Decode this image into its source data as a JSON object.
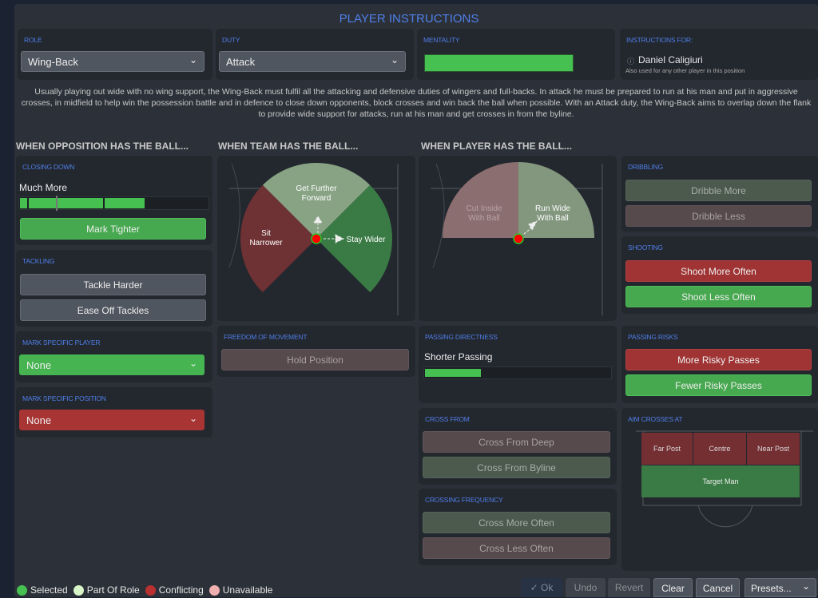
{
  "title": "PLAYER INSTRUCTIONS",
  "role": {
    "label": "ROLE",
    "value": "Wing-Back"
  },
  "duty": {
    "label": "DUTY",
    "value": "Attack"
  },
  "mentality": {
    "label": "MENTALITY",
    "level": 0.72,
    "color": "#46c050"
  },
  "instructions_for": {
    "label": "INSTRUCTIONS FOR:",
    "player": "Daniel Caligiuri",
    "note": "Also used for any other player in this position"
  },
  "description": "Usually playing out wide with no wing support, the Wing-Back must fulfil all the attacking and defensive duties of wingers and full-backs. In attack he must be prepared to run at his man and put in aggressive crosses, in midfield to help win the possession battle and in defence to close down opponents, block crosses and win back the ball when possible. With an Attack duty, the Wing-Back aims to overlap down the flank to provide wide support for attacks, run at his man and get crosses in from the byline.",
  "sections": {
    "opposition": "WHEN OPPOSITION HAS THE BALL...",
    "team": "WHEN TEAM HAS THE BALL...",
    "player": "WHEN PLAYER HAS THE BALL..."
  },
  "closing_down": {
    "label": "CLOSING DOWN",
    "value": "Much More",
    "level": 0.66,
    "button": "Mark Tighter"
  },
  "tackling": {
    "label": "TACKLING",
    "buttons": [
      "Tackle Harder",
      "Ease Off Tackles"
    ]
  },
  "mark_player": {
    "label": "MARK SPECIFIC PLAYER",
    "value": "None"
  },
  "mark_position": {
    "label": "MARK SPECIFIC POSITION",
    "value": "None"
  },
  "team_diagram": {
    "forward": "Get Further Forward",
    "narrower": "Sit Narrower",
    "wider": "Stay Wider"
  },
  "freedom": {
    "label": "FREEDOM OF MOVEMENT",
    "button": "Hold Position"
  },
  "player_diagram": {
    "inside": "Cut Inside With Ball",
    "wide": "Run Wide With Ball"
  },
  "passing_directness": {
    "label": "PASSING DIRECTNESS",
    "value": "Shorter Passing",
    "level": 0.3
  },
  "cross_from": {
    "label": "CROSS FROM",
    "buttons": [
      "Cross From Deep",
      "Cross From Byline"
    ]
  },
  "crossing_frequency": {
    "label": "CROSSING FREQUENCY",
    "buttons": [
      "Cross More Often",
      "Cross Less Often"
    ]
  },
  "dribbling": {
    "label": "DRIBBLING",
    "buttons": [
      "Dribble More",
      "Dribble Less"
    ]
  },
  "shooting": {
    "label": "SHOOTING",
    "buttons": [
      "Shoot More Often",
      "Shoot Less Often"
    ]
  },
  "passing_risks": {
    "label": "PASSING RISKS",
    "buttons": [
      "More Risky Passes",
      "Fewer Risky Passes"
    ]
  },
  "aim_crosses": {
    "label": "AIM CROSSES AT",
    "zones": [
      "Far Post",
      "Centre",
      "Near Post",
      "Target Man"
    ]
  },
  "legend": [
    {
      "label": "Selected",
      "color": "#46c050"
    },
    {
      "label": "Part Of Role",
      "color": "#d8f5c8"
    },
    {
      "label": "Conflicting",
      "color": "#b83030"
    },
    {
      "label": "Unavailable",
      "color": "#f0b0b0"
    }
  ],
  "footer": {
    "ok": "✓ Ok",
    "undo": "Undo",
    "revert": "Revert",
    "clear": "Clear",
    "cancel": "Cancel",
    "presets": "Presets...",
    "presets_icon": "chevron-down-icon"
  }
}
